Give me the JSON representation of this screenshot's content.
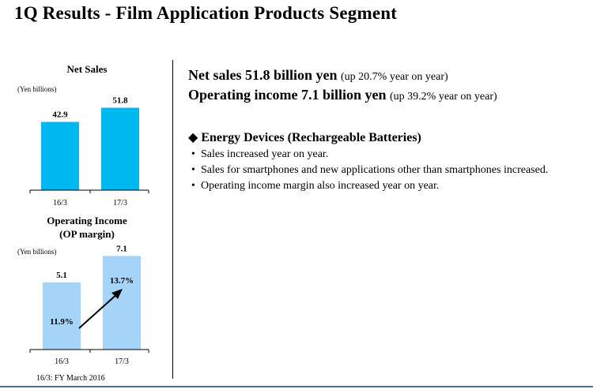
{
  "title": "1Q Results - Film Application Products Segment",
  "footnote": "16/3: FY March 2016",
  "chart_data": [
    {
      "type": "bar",
      "title": "Net Sales",
      "unit_label": "(Yen billions)",
      "categories": [
        "16/3",
        "17/3"
      ],
      "values": [
        42.9,
        51.8
      ],
      "value_labels": [
        "42.9",
        "51.8"
      ],
      "ylim": [
        0,
        60
      ],
      "grid": false,
      "color": "#00b8f0"
    },
    {
      "type": "bar",
      "title": "Operating Income",
      "subtitle": "(OP margin)",
      "unit_label": "(Yen billions)",
      "categories": [
        "16/3",
        "17/3"
      ],
      "values": [
        5.1,
        7.1
      ],
      "value_labels": [
        "5.1",
        "7.1"
      ],
      "margin_labels": [
        "11.9%",
        "13.7%"
      ],
      "ylim": [
        0,
        7.6
      ],
      "grid": false,
      "color": "#a6d3f8"
    }
  ],
  "summary": {
    "net_sales_main": "Net sales 51.8 billion yen",
    "net_sales_paren": "(up 20.7% year on year)",
    "op_income_main": "Operating income 7.1 billion yen",
    "op_income_paren": "(up 39.2% year on year)"
  },
  "section": {
    "marker": "◆",
    "title": "Energy Devices (Rechargeable Batteries)",
    "bullet_glyph": "•",
    "bullets": [
      "Sales increased year on year.",
      "Sales for smartphones and new applications other than smartphones increased.",
      "Operating income margin also increased year on year."
    ]
  }
}
